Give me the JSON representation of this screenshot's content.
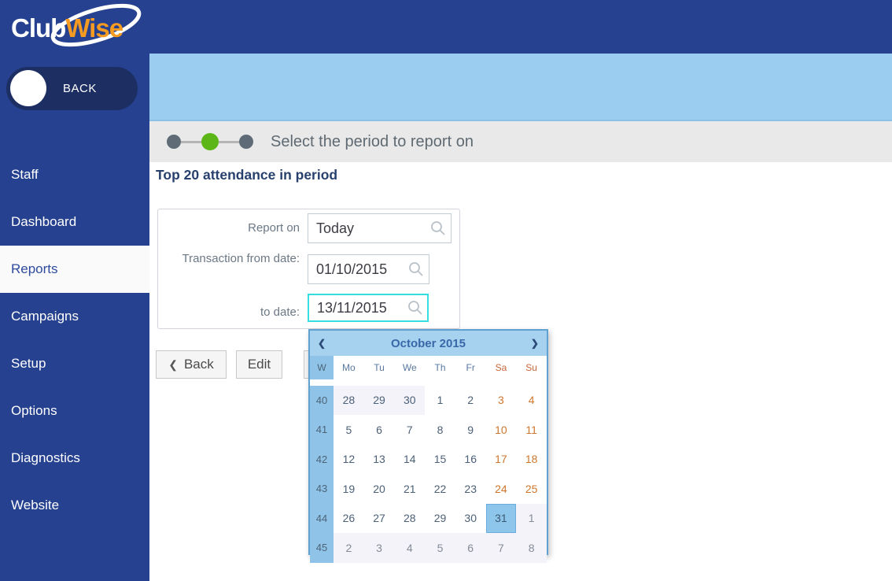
{
  "logo": {
    "text_primary": "Club",
    "text_secondary": "Wise"
  },
  "colors": {
    "navy": "#26418f",
    "navy_dark": "#1d2e63",
    "light_blue": "#9acdf0",
    "band_gray": "#e9e9e9",
    "step_green": "#5cb617",
    "step_gray": "#5f6b76",
    "focus_cyan": "#35dede",
    "cal_border": "#5fa2d2",
    "cal_header_bg": "#a6d2f0",
    "cal_week_bg": "#90c3e8",
    "cal_selected_bg": "#8ec5ea",
    "weekend_orange": "#d0762c",
    "heading_navy": "#27406e",
    "logo_orange": "#f59b22"
  },
  "sidebar": {
    "back_label": "BACK",
    "items": [
      {
        "label": "Staff",
        "active": false
      },
      {
        "label": "Dashboard",
        "active": false
      },
      {
        "label": "Reports",
        "active": true
      },
      {
        "label": "Campaigns",
        "active": false
      },
      {
        "label": "Setup",
        "active": false
      },
      {
        "label": "Options",
        "active": false
      },
      {
        "label": "Diagnostics",
        "active": false
      },
      {
        "label": "Website",
        "active": false
      }
    ]
  },
  "stepper": {
    "title": "Select the period to report on",
    "steps": [
      {
        "state": "inactive"
      },
      {
        "state": "active"
      },
      {
        "state": "inactive"
      }
    ]
  },
  "page": {
    "heading": "Top 20 attendance in period"
  },
  "form": {
    "fields": [
      {
        "label": "Report on",
        "value": "Today",
        "focused": false
      },
      {
        "label": "Transaction from date:",
        "value": "01/10/2015",
        "focused": false
      },
      {
        "label": "to date:",
        "value": "13/11/2015",
        "focused": true
      }
    ],
    "search_icon": "magnifier"
  },
  "actions": {
    "back_icon": "❮",
    "back_label": "Back",
    "edit_label": "Edit"
  },
  "calendar": {
    "prev_icon": "❮",
    "next_icon": "❯",
    "title": "October 2015",
    "week_header": "W",
    "day_headers": [
      {
        "label": "Mo",
        "weekend": false
      },
      {
        "label": "Tu",
        "weekend": false
      },
      {
        "label": "We",
        "weekend": false
      },
      {
        "label": "Th",
        "weekend": false
      },
      {
        "label": "Fr",
        "weekend": false
      },
      {
        "label": "Sa",
        "weekend": true
      },
      {
        "label": "Su",
        "weekend": true
      }
    ],
    "weeks": [
      {
        "num": 40,
        "days": [
          {
            "d": 28,
            "type": "prev"
          },
          {
            "d": 29,
            "type": "prev"
          },
          {
            "d": 30,
            "type": "prev"
          },
          {
            "d": 1,
            "type": "cur"
          },
          {
            "d": 2,
            "type": "cur"
          },
          {
            "d": 3,
            "type": "wkd"
          },
          {
            "d": 4,
            "type": "wkd"
          }
        ]
      },
      {
        "num": 41,
        "days": [
          {
            "d": 5,
            "type": "cur"
          },
          {
            "d": 6,
            "type": "cur"
          },
          {
            "d": 7,
            "type": "cur"
          },
          {
            "d": 8,
            "type": "cur"
          },
          {
            "d": 9,
            "type": "cur"
          },
          {
            "d": 10,
            "type": "wkd"
          },
          {
            "d": 11,
            "type": "wkd"
          }
        ]
      },
      {
        "num": 42,
        "days": [
          {
            "d": 12,
            "type": "cur"
          },
          {
            "d": 13,
            "type": "cur"
          },
          {
            "d": 14,
            "type": "cur"
          },
          {
            "d": 15,
            "type": "cur"
          },
          {
            "d": 16,
            "type": "cur"
          },
          {
            "d": 17,
            "type": "wkd"
          },
          {
            "d": 18,
            "type": "wkd"
          }
        ]
      },
      {
        "num": 43,
        "days": [
          {
            "d": 19,
            "type": "cur"
          },
          {
            "d": 20,
            "type": "cur"
          },
          {
            "d": 21,
            "type": "cur"
          },
          {
            "d": 22,
            "type": "cur"
          },
          {
            "d": 23,
            "type": "cur"
          },
          {
            "d": 24,
            "type": "wkd"
          },
          {
            "d": 25,
            "type": "wkd"
          }
        ]
      },
      {
        "num": 44,
        "days": [
          {
            "d": 26,
            "type": "cur"
          },
          {
            "d": 27,
            "type": "cur"
          },
          {
            "d": 28,
            "type": "cur"
          },
          {
            "d": 29,
            "type": "cur"
          },
          {
            "d": 30,
            "type": "cur"
          },
          {
            "d": 31,
            "type": "sel"
          },
          {
            "d": 1,
            "type": "next"
          }
        ]
      },
      {
        "num": 45,
        "days": [
          {
            "d": 2,
            "type": "next"
          },
          {
            "d": 3,
            "type": "next"
          },
          {
            "d": 4,
            "type": "next"
          },
          {
            "d": 5,
            "type": "next"
          },
          {
            "d": 6,
            "type": "next"
          },
          {
            "d": 7,
            "type": "next"
          },
          {
            "d": 8,
            "type": "next"
          }
        ]
      }
    ]
  }
}
